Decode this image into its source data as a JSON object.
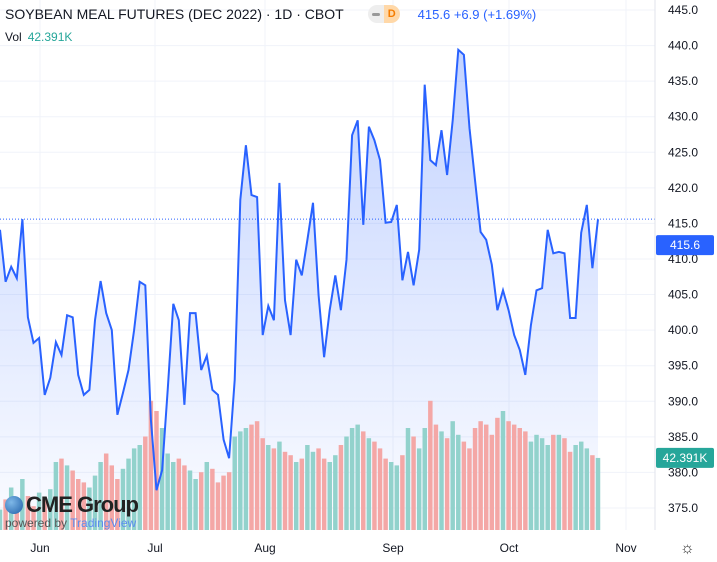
{
  "header": {
    "title": "SOYBEAN MEAL FUTURES (DEC 2022) · 1D · CBOT",
    "badge": "D",
    "last": "415.6",
    "change": "+6.9",
    "change_pct": "(+1.69%)",
    "vol_label": "Vol",
    "vol_value": "42.391K"
  },
  "branding": {
    "logo": "CME Group",
    "powered_by": "powered by",
    "tradingview": "TradingView"
  },
  "colors": {
    "line": "#2962ff",
    "up_vol": "#92d2cc",
    "down_vol": "#f4a7a6",
    "price_label": "#2962ff",
    "vol_label": "#26a69a"
  },
  "chart_data": {
    "type": "line",
    "title": "SOYBEAN MEAL FUTURES (DEC 2022)",
    "x_ticks": [
      "Jun",
      "Jul",
      "Aug",
      "Sep",
      "Oct",
      "Nov"
    ],
    "y_ticks": [
      "445.0",
      "440.0",
      "435.0",
      "430.0",
      "425.0",
      "420.0",
      "415.0",
      "410.0",
      "405.0",
      "400.0",
      "395.0",
      "390.0",
      "385.0",
      "380.0",
      "375.0"
    ],
    "ylim": [
      372,
      446
    ],
    "last_price_label": "415.6",
    "last_volume_label": "42.391K",
    "prices": [
      414.1,
      406.8,
      408.9,
      407.3,
      415.6,
      401.8,
      398.2,
      398.9,
      390.9,
      393.3,
      398.3,
      396.5,
      402.1,
      401.8,
      393.7,
      390.9,
      391.6,
      401.4,
      406.9,
      402.4,
      400.0,
      388.1,
      391.2,
      394.4,
      400.0,
      406.8,
      406.3,
      387.4,
      377.5,
      380.3,
      391.6,
      403.7,
      401.4,
      389.5,
      402.4,
      402.4,
      394.4,
      396.4,
      391.6,
      390.9,
      384.6,
      382.0,
      393.0,
      418.3,
      426.0,
      419.0,
      418.7,
      399.3,
      403.4,
      401.4,
      420.7,
      404.2,
      399.3,
      409.9,
      407.7,
      412.7,
      417.9,
      404.9,
      396.2,
      402.8,
      407.7,
      402.8,
      409.9,
      427.4,
      429.5,
      414.8,
      428.6,
      426.7,
      423.9,
      415.1,
      415.2,
      417.6,
      407.0,
      411.0,
      406.3,
      411.3,
      434.5,
      423.9,
      423.2,
      428.1,
      421.8,
      429.5,
      439.4,
      438.7,
      428.4,
      421.1,
      413.8,
      412.7,
      409.2,
      402.8,
      405.6,
      402.8,
      399.3,
      397.2,
      393.7,
      400.7,
      405.6,
      405.9,
      414.1,
      410.8,
      411.0,
      410.8,
      401.7,
      401.7,
      413.7,
      417.6,
      408.7,
      415.6
    ],
    "volumes_k": [
      12,
      18,
      25,
      16,
      30,
      20,
      14,
      22,
      18,
      24,
      40,
      42,
      38,
      35,
      30,
      28,
      25,
      32,
      40,
      45,
      38,
      30,
      36,
      42,
      48,
      50,
      55,
      76,
      70,
      60,
      45,
      40,
      42,
      38,
      35,
      30,
      34,
      40,
      36,
      28,
      32,
      34,
      55,
      58,
      60,
      62,
      64,
      54,
      50,
      48,
      52,
      46,
      44,
      40,
      42,
      50,
      46,
      48,
      42,
      40,
      44,
      50,
      55,
      60,
      62,
      58,
      54,
      52,
      48,
      42,
      40,
      38,
      44,
      60,
      55,
      48,
      60,
      76,
      62,
      58,
      54,
      64,
      56,
      52,
      48,
      60,
      64,
      62,
      56,
      66,
      70,
      64,
      62,
      60,
      58,
      52,
      56,
      54,
      50,
      56,
      56,
      54,
      46,
      50,
      52,
      48,
      44,
      42.391
    ]
  }
}
